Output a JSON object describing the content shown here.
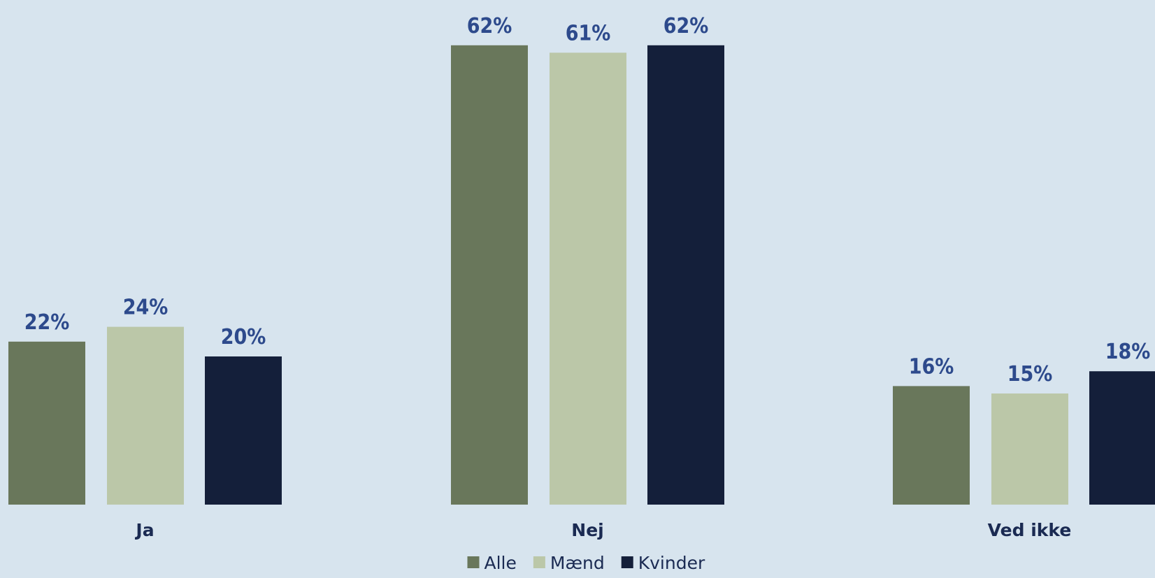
{
  "chart_data": {
    "type": "bar",
    "categories": [
      "Ja",
      "Nej",
      "Ved ikke"
    ],
    "series": [
      {
        "name": "Alle",
        "color": "#69775b",
        "values": [
          22,
          62,
          16
        ],
        "labels": [
          "22%",
          "62%",
          "16%"
        ]
      },
      {
        "name": "Mænd",
        "color": "#bbc7a8",
        "values": [
          24,
          61,
          15
        ],
        "labels": [
          "24%",
          "61%",
          "15%"
        ]
      },
      {
        "name": "Kvinder",
        "color": "#141f3a",
        "values": [
          20,
          62,
          18
        ],
        "labels": [
          "20%",
          "62%",
          "18%"
        ]
      }
    ],
    "ylim": [
      0,
      65
    ],
    "grid": false,
    "legend_position": "bottom-center",
    "xlabel": "",
    "ylabel": ""
  }
}
